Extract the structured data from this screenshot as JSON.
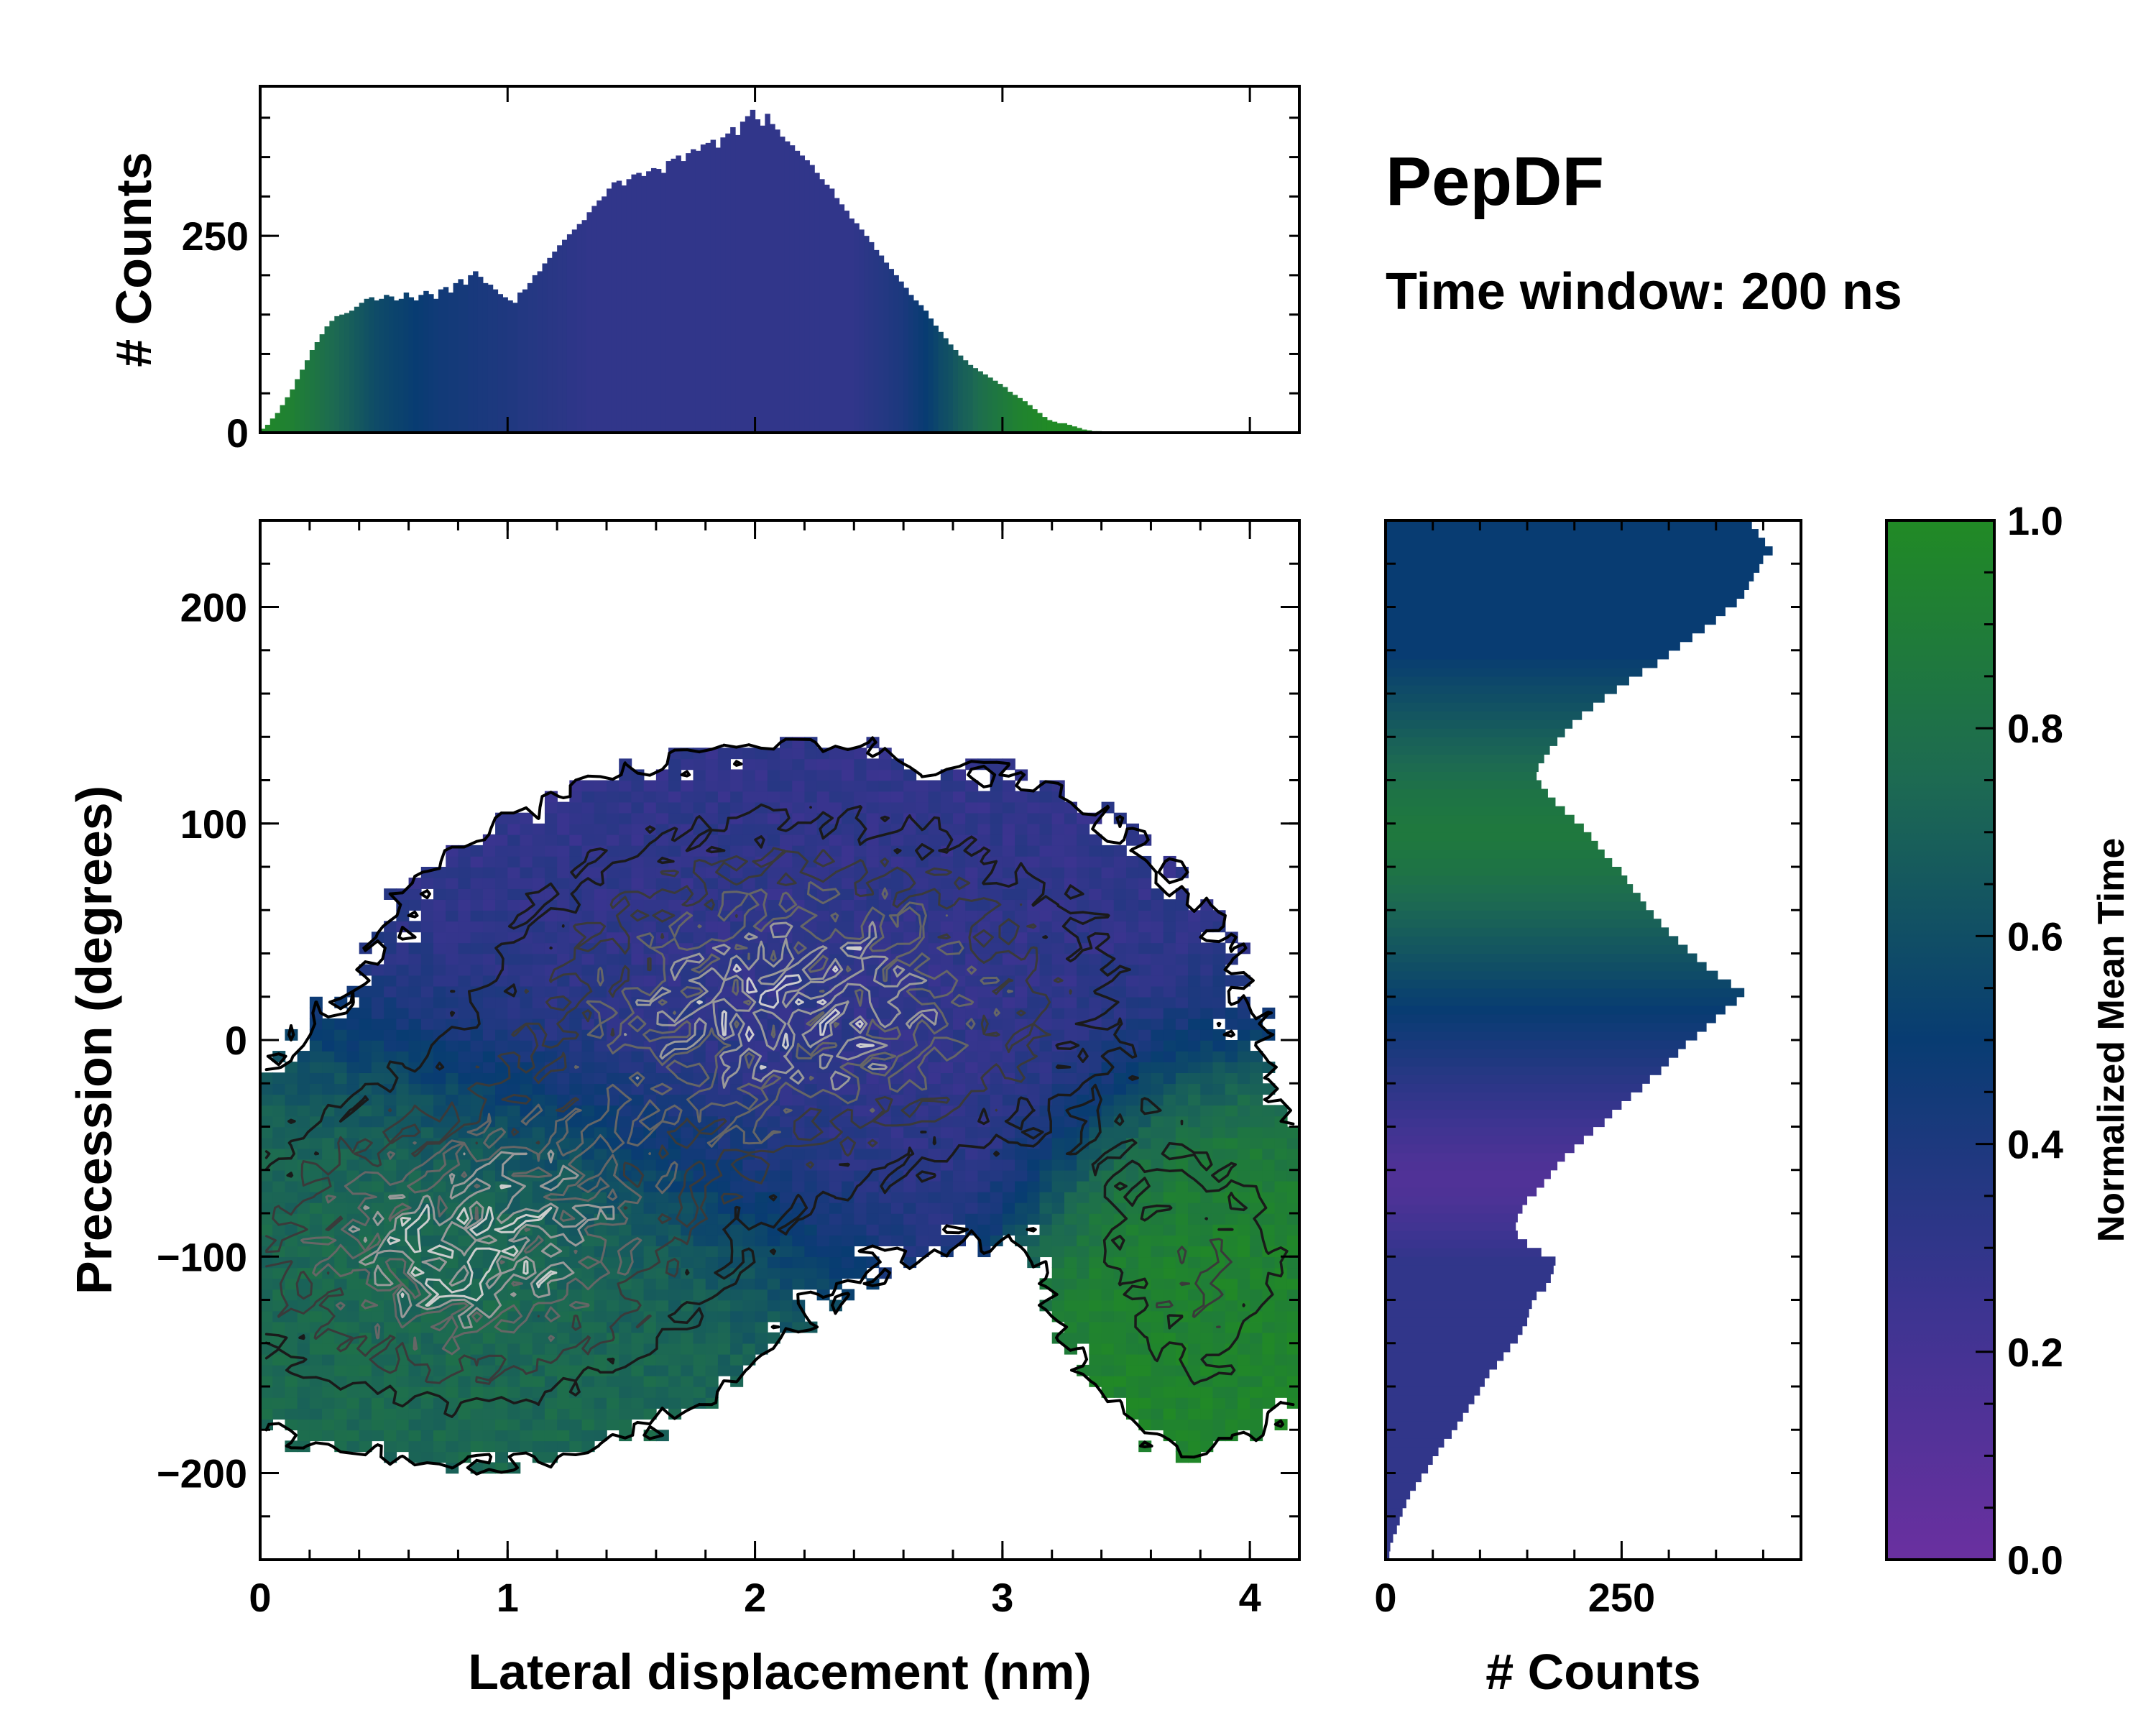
{
  "chart_data": [
    {
      "panel": "main-2d-histogram",
      "type": "heatmap",
      "title": "PepDF",
      "subtitle": "Time window: 200 ns",
      "xlabel": "Lateral displacement (nm)",
      "ylabel": "Precession (degrees)",
      "xlim": [
        0,
        4.2
      ],
      "ylim": [
        -240,
        240
      ],
      "xticks": [
        0,
        1,
        2,
        3,
        4
      ],
      "xtick_labels": [
        "0",
        "1",
        "2",
        "3",
        "4"
      ],
      "yticks": [
        -200,
        -100,
        0,
        100,
        200
      ],
      "ytick_labels": [
        "−200",
        "−100",
        "0",
        "100",
        "200"
      ],
      "colormap_stops": [
        {
          "value": 0.0,
          "color": "#6a30a0"
        },
        {
          "value": 0.25,
          "color": "#3b3490"
        },
        {
          "value": 0.5,
          "color": "#083c72"
        },
        {
          "value": 0.75,
          "color": "#1d6a52"
        },
        {
          "value": 1.0,
          "color": "#218a25"
        }
      ],
      "clusters": [
        {
          "name": "upper lobe",
          "x_center": 2.2,
          "y_center": 20,
          "x_sigma": 0.9,
          "y_sigma": 60,
          "mean_time": 0.3
        },
        {
          "name": "lower lobe",
          "x_center": 0.8,
          "y_center": -100,
          "x_sigma": 0.7,
          "y_sigma": 50,
          "mean_time": 0.75
        },
        {
          "name": "right green patch",
          "x_center": 3.8,
          "y_center": -110,
          "x_sigma": 0.35,
          "y_sigma": 50,
          "mean_time": 0.95
        }
      ]
    },
    {
      "panel": "top-marginal-histogram",
      "type": "bar",
      "ylabel": "# Counts",
      "ylim": [
        0,
        440
      ],
      "yticks": [
        0,
        250
      ],
      "ytick_labels": [
        "0",
        "250"
      ],
      "x_start": 0.0,
      "x_step": 0.02,
      "values": [
        5,
        10,
        18,
        25,
        35,
        45,
        55,
        68,
        80,
        92,
        105,
        115,
        125,
        135,
        142,
        148,
        150,
        152,
        155,
        160,
        165,
        170,
        172,
        168,
        170,
        175,
        173,
        168,
        170,
        178,
        172,
        168,
        175,
        180,
        176,
        170,
        182,
        185,
        178,
        190,
        195,
        188,
        200,
        205,
        198,
        190,
        188,
        182,
        176,
        172,
        168,
        165,
        178,
        182,
        190,
        200,
        205,
        215,
        222,
        230,
        238,
        245,
        252,
        258,
        265,
        270,
        280,
        288,
        295,
        300,
        310,
        318,
        320,
        314,
        322,
        328,
        330,
        326,
        332,
        336,
        335,
        330,
        345,
        348,
        352,
        345,
        355,
        360,
        358,
        366,
        368,
        372,
        362,
        375,
        380,
        388,
        378,
        395,
        402,
        410,
        398,
        390,
        405,
        392,
        385,
        376,
        370,
        365,
        358,
        352,
        346,
        340,
        330,
        322,
        315,
        310,
        298,
        290,
        282,
        272,
        266,
        258,
        250,
        242,
        232,
        225,
        216,
        208,
        200,
        192,
        184,
        175,
        168,
        162,
        155,
        145,
        136,
        128,
        120,
        112,
        105,
        98,
        92,
        86,
        82,
        78,
        74,
        70,
        66,
        62,
        58,
        52,
        48,
        44,
        40,
        35,
        30,
        25,
        20,
        16,
        14,
        12,
        12,
        10,
        8,
        6,
        4,
        3,
        2,
        2
      ],
      "time_values": [
        1.0,
        0.98,
        0.96,
        0.95,
        0.94,
        0.93,
        0.92,
        0.9,
        0.88,
        0.86,
        0.84,
        0.82,
        0.8,
        0.78,
        0.76,
        0.74,
        0.72,
        0.7,
        0.68,
        0.66,
        0.64,
        0.62,
        0.6,
        0.58,
        0.57,
        0.56,
        0.55,
        0.54,
        0.53,
        0.52,
        0.51,
        0.5,
        0.49,
        0.48,
        0.47,
        0.46,
        0.45,
        0.45,
        0.44,
        0.44,
        0.43,
        0.43,
        0.42,
        0.42,
        0.41,
        0.41,
        0.4,
        0.4,
        0.39,
        0.39,
        0.38,
        0.38,
        0.37,
        0.37,
        0.36,
        0.36,
        0.35,
        0.35,
        0.34,
        0.34,
        0.33,
        0.33,
        0.32,
        0.32,
        0.31,
        0.31,
        0.3,
        0.3,
        0.3,
        0.3,
        0.3,
        0.3,
        0.3,
        0.3,
        0.3,
        0.3,
        0.3,
        0.3,
        0.3,
        0.3,
        0.3,
        0.3,
        0.3,
        0.3,
        0.3,
        0.3,
        0.3,
        0.3,
        0.3,
        0.3,
        0.3,
        0.3,
        0.3,
        0.3,
        0.3,
        0.3,
        0.3,
        0.3,
        0.3,
        0.3,
        0.3,
        0.3,
        0.3,
        0.3,
        0.3,
        0.3,
        0.3,
        0.3,
        0.3,
        0.3,
        0.3,
        0.3,
        0.3,
        0.3,
        0.3,
        0.3,
        0.3,
        0.3,
        0.3,
        0.3,
        0.31,
        0.32,
        0.33,
        0.34,
        0.35,
        0.36,
        0.37,
        0.38,
        0.39,
        0.4,
        0.42,
        0.44,
        0.46,
        0.48,
        0.5,
        0.52,
        0.55,
        0.58,
        0.6,
        0.62,
        0.65,
        0.68,
        0.7,
        0.72,
        0.75,
        0.78,
        0.8,
        0.82,
        0.84,
        0.86,
        0.88,
        0.9,
        0.92,
        0.94,
        0.95,
        0.96,
        0.97,
        0.98,
        0.99,
        1.0,
        1.0,
        1.0,
        1.0,
        1.0,
        1.0,
        1.0,
        1.0,
        1.0,
        1.0,
        1.0
      ]
    },
    {
      "panel": "right-marginal-histogram",
      "type": "bar",
      "orientation": "horizontal",
      "xlabel": "# Counts",
      "xlim": [
        0,
        440
      ],
      "xticks": [
        0,
        250
      ],
      "xtick_labels": [
        "0",
        "250"
      ],
      "y_start": -240,
      "y_step": 4,
      "values": [
        4,
        5,
        8,
        12,
        15,
        18,
        22,
        26,
        32,
        38,
        45,
        50,
        56,
        62,
        70,
        76,
        82,
        88,
        94,
        100,
        105,
        110,
        118,
        125,
        132,
        140,
        145,
        150,
        152,
        155,
        160,
        170,
        175,
        178,
        180,
        165,
        150,
        140,
        138,
        140,
        145,
        150,
        160,
        168,
        175,
        182,
        190,
        200,
        210,
        220,
        232,
        240,
        250,
        260,
        272,
        280,
        292,
        300,
        310,
        318,
        330,
        340,
        350,
        360,
        372,
        380,
        366,
        352,
        340,
        330,
        320,
        310,
        300,
        292,
        284,
        276,
        270,
        262,
        256,
        250,
        240,
        232,
        225,
        218,
        210,
        200,
        190,
        180,
        172,
        165,
        160,
        162,
        168,
        174,
        182,
        190,
        198,
        208,
        220,
        232,
        245,
        258,
        272,
        288,
        300,
        312,
        325,
        338,
        350,
        360,
        372,
        380,
        385,
        390,
        396,
        400,
        410,
        402,
        395,
        388,
        380,
        372,
        362,
        350,
        338,
        326,
        315,
        302,
        290,
        278,
        265,
        252,
        240,
        228,
        216,
        205,
        196,
        188,
        182,
        178,
        176,
        172,
        165,
        160,
        155,
        150,
        148,
        145,
        145,
        150,
        160,
        175,
        185,
        170,
        155,
        140,
        126,
        112,
        100,
        90,
        80,
        72,
        66,
        60,
        55,
        50,
        45,
        40,
        36,
        32,
        28,
        24,
        20,
        16,
        12,
        8,
        5,
        2
      ],
      "time_values": [
        0.3,
        0.3,
        0.3,
        0.3,
        0.3,
        0.3,
        0.3,
        0.3,
        0.3,
        0.3,
        0.3,
        0.3,
        0.3,
        0.3,
        0.3,
        0.3,
        0.3,
        0.3,
        0.3,
        0.3,
        0.3,
        0.3,
        0.3,
        0.3,
        0.3,
        0.3,
        0.3,
        0.3,
        0.3,
        0.3,
        0.3,
        0.3,
        0.3,
        0.3,
        0.3,
        0.28,
        0.26,
        0.24,
        0.22,
        0.2,
        0.18,
        0.16,
        0.15,
        0.14,
        0.14,
        0.15,
        0.16,
        0.18,
        0.2,
        0.22,
        0.24,
        0.26,
        0.28,
        0.3,
        0.32,
        0.34,
        0.36,
        0.38,
        0.4,
        0.42,
        0.44,
        0.46,
        0.48,
        0.5,
        0.52,
        0.54,
        0.56,
        0.58,
        0.6,
        0.62,
        0.64,
        0.66,
        0.68,
        0.7,
        0.72,
        0.74,
        0.76,
        0.78,
        0.8,
        0.82,
        0.83,
        0.84,
        0.85,
        0.86,
        0.86,
        0.85,
        0.84,
        0.83,
        0.82,
        0.8,
        0.78,
        0.76,
        0.74,
        0.72,
        0.7,
        0.68,
        0.66,
        0.64,
        0.62,
        0.6,
        0.58,
        0.56,
        0.54,
        0.52,
        0.5,
        0.5,
        0.5,
        0.5,
        0.5,
        0.5,
        0.5,
        0.5,
        0.5,
        0.5,
        0.5,
        0.5,
        0.5,
        0.5,
        0.5,
        0.5,
        0.5,
        0.5,
        0.5,
        0.5,
        0.5,
        0.5,
        0.5,
        0.5,
        0.5,
        0.5,
        0.5,
        0.5,
        0.5,
        0.5,
        0.5,
        0.5,
        0.5,
        0.5,
        0.5,
        0.5,
        0.5,
        0.5,
        0.5,
        0.5,
        0.5,
        0.5,
        0.5,
        0.5,
        0.5,
        0.5,
        0.5,
        0.5,
        0.5,
        0.5,
        0.5,
        0.5,
        0.5,
        0.5,
        0.5,
        0.5,
        0.5,
        0.5,
        0.5,
        0.5,
        0.5,
        0.5,
        0.5,
        0.5,
        0.5,
        0.5,
        0.5,
        0.5,
        0.5,
        0.5,
        0.5,
        0.5,
        0.5,
        0.5,
        0.5,
        0.5,
        0.5,
        0.5,
        0.5,
        0.5
      ]
    },
    {
      "panel": "colorbar",
      "type": "colorbar",
      "label": "Normalized Mean Time",
      "range": [
        0.0,
        1.0
      ],
      "ticks": [
        0.0,
        0.2,
        0.4,
        0.6,
        0.8,
        1.0
      ],
      "tick_labels": [
        "0.0",
        "0.2",
        "0.4",
        "0.6",
        "0.8",
        "1.0"
      ]
    }
  ]
}
